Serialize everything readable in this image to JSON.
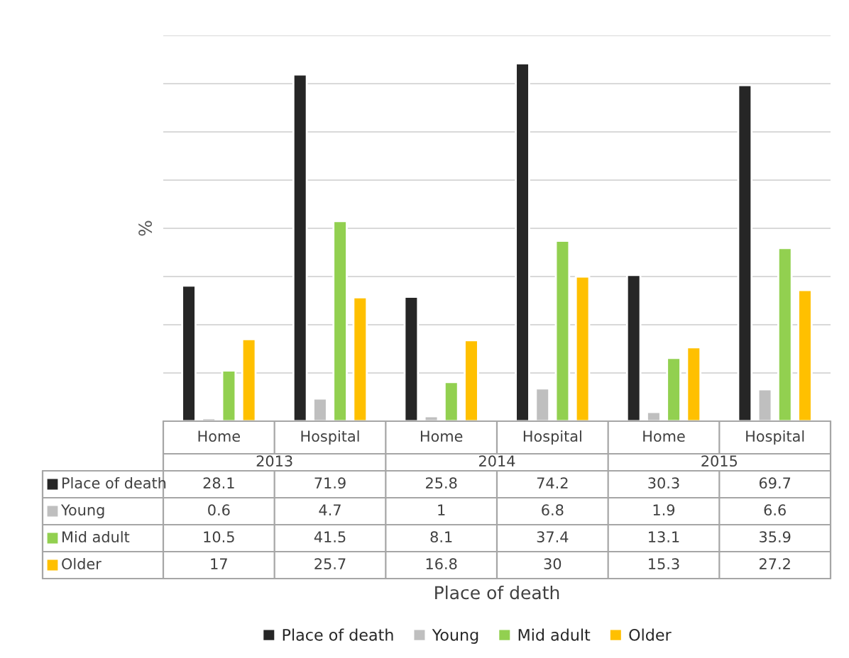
{
  "chart_data": {
    "type": "bar",
    "ylabel": "%",
    "categories": [
      "Home",
      "Hospital",
      "Home",
      "Hospital",
      "Home",
      "Hospital"
    ],
    "series": [
      {
        "name": "Place of death",
        "color": "#262626",
        "values": [
          28.1,
          71.9,
          25.8,
          74.2,
          30.3,
          69.7
        ]
      },
      {
        "name": "Young",
        "color": "#bfbfbf",
        "values": [
          0.6,
          4.7,
          1,
          6.8,
          1.9,
          6.6
        ]
      },
      {
        "name": "Mid adult",
        "color": "#92d050",
        "values": [
          10.5,
          41.5,
          8.1,
          37.4,
          13.1,
          35.9
        ]
      },
      {
        "name": "Older",
        "color": "#ffc000",
        "values": [
          17,
          25.7,
          16.8,
          30,
          15.3,
          27.2
        ]
      }
    ],
    "annotations": [
      "2013",
      "2014",
      "2015",
      "Place of death"
    ],
    "ylim": [
      0,
      80
    ],
    "yticks": [
      {
        "value": 0,
        "label": null
      },
      {
        "value": 10,
        "label": null
      },
      {
        "value": 20,
        "label": null
      },
      {
        "value": 30,
        "label": null
      },
      {
        "value": 40,
        "label": null
      },
      {
        "value": 50,
        "label": null
      },
      {
        "value": 60,
        "label": null
      },
      {
        "value": 70,
        "label": null
      },
      {
        "value": 80,
        "label": null
      }
    ],
    "grid": "y",
    "legend": "bottom",
    "data_labels": true,
    "tick_labels": false
  }
}
